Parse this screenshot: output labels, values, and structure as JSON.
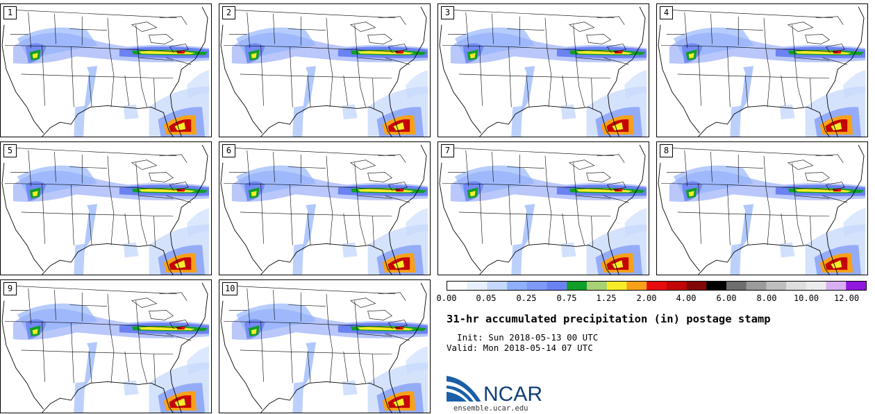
{
  "panels": [
    {
      "label": "1"
    },
    {
      "label": "2"
    },
    {
      "label": "3"
    },
    {
      "label": "4"
    },
    {
      "label": "5"
    },
    {
      "label": "6"
    },
    {
      "label": "7"
    },
    {
      "label": "8"
    },
    {
      "label": "9"
    },
    {
      "label": "10"
    }
  ],
  "colorbar": {
    "colors": [
      "#ffffff",
      "#e7f0fc",
      "#c5d8fb",
      "#8fb0fa",
      "#7f99f7",
      "#6b82f2",
      "#0f9e29",
      "#a7d174",
      "#f8ec2a",
      "#f8a118",
      "#e80c0c",
      "#c40505",
      "#820808",
      "#000000",
      "#6e6e6e",
      "#9b9b9b",
      "#bebebe",
      "#dedede",
      "#ecebed",
      "#d8aff3",
      "#9218e1"
    ],
    "ticks": [
      "0.00",
      "0.05",
      "0.25",
      "0.75",
      "1.25",
      "2.00",
      "4.00",
      "6.00",
      "8.00",
      "10.00",
      "12.00"
    ]
  },
  "title": "31-hr accumulated precipitation (in) postage stamp",
  "init_label": "  Init: Sun 2018-05-13 00 UTC",
  "valid_label": "Valid: Mon 2018-05-14 07 UTC",
  "logo_text": "NCAR",
  "logo_url": "ensemble.ucar.edu"
}
